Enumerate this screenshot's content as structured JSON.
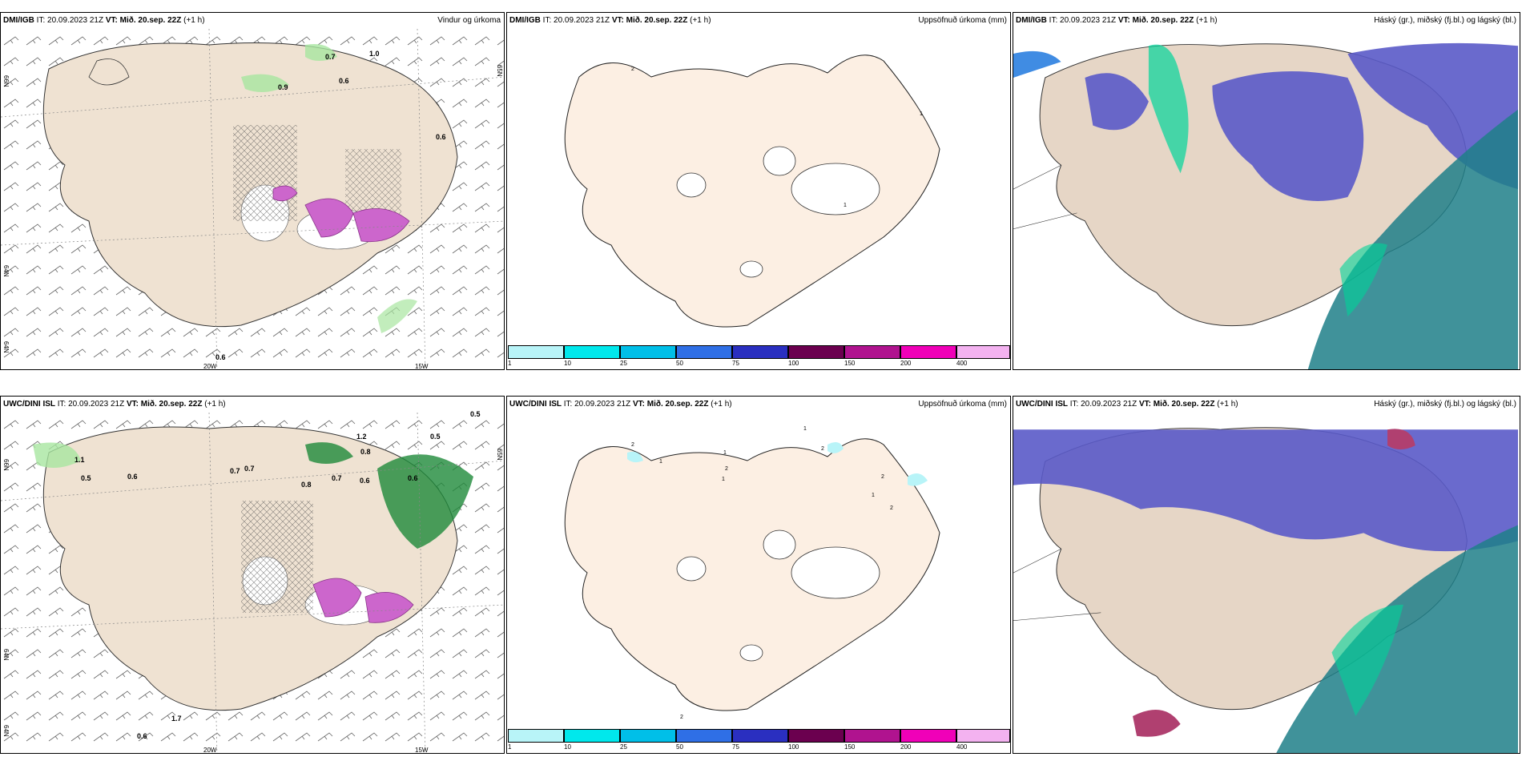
{
  "panels": [
    {
      "model": "DMI/IGB",
      "init_label": "IT:",
      "init": "20.09.2023 21Z",
      "valid_label": "VT:",
      "valid": "Mið. 20.sep. 22Z",
      "lead": "(+1 h)",
      "title": "Vindur og úrkoma"
    },
    {
      "model": "DMI/IGB",
      "init_label": "IT:",
      "init": "20.09.2023 21Z",
      "valid_label": "VT:",
      "valid": "Mið. 20.sep. 22Z",
      "lead": "(+1 h)",
      "title": "Uppsöfnuð úrkoma (mm)"
    },
    {
      "model": "DMI/IGB",
      "init_label": "IT:",
      "init": "20.09.2023 21Z",
      "valid_label": "VT:",
      "valid": "Mið. 20.sep. 22Z",
      "lead": "(+1 h)",
      "title": "Háský (gr.), miðský (fj.bl.) og lágský (bl.)"
    },
    {
      "model": "UWC/DINI ISL",
      "init_label": "IT:",
      "init": "20.09.2023 21Z",
      "valid_label": "VT:",
      "valid": "Mið. 20.sep. 22Z",
      "lead": "(+1 h)",
      "title": ""
    },
    {
      "model": "UWC/DINI ISL",
      "init_label": "IT:",
      "init": "20.09.2023 21Z",
      "valid_label": "VT:",
      "valid": "Mið. 20.sep. 22Z",
      "lead": "(+1 h)",
      "title": "Uppsöfnuð úrkoma (mm)"
    },
    {
      "model": "UWC/DINI ISL",
      "init_label": "IT:",
      "init": "20.09.2023 21Z",
      "valid_label": "VT:",
      "valid": "Mið. 20.sep. 22Z",
      "lead": "(+1 h)",
      "title": "Háský (gr.), miðský (fj.bl.) og lágský (bl.)"
    }
  ],
  "axes": {
    "lon_left": "20W",
    "lon_right": "15W",
    "lat_66": "66N",
    "lat_64": "64N",
    "lat_64b": "64N",
    "lat_65_side": "65N"
  },
  "colorbar": {
    "colors": [
      "#b8f4f8",
      "#00e8ec",
      "#00bfe8",
      "#2f6fe6",
      "#2a2fc0",
      "#6b004f",
      "#b0138f",
      "#f000b8",
      "#f3b2f0"
    ],
    "ticks": [
      "1",
      "10",
      "25",
      "50",
      "75",
      "100",
      "150",
      "200",
      "400"
    ]
  },
  "wind_values_top": [
    "0.7",
    "1.0",
    "0.9",
    "0.6",
    "0.6",
    "0.6"
  ],
  "wind_values_bottom": [
    "1.1",
    "0.5",
    "0.6",
    "0.7",
    "0.7",
    "1.2",
    "0.5",
    "0.8",
    "0.6",
    "1.7",
    "0.6",
    "0.5",
    "0.8",
    "0.7",
    "0.6"
  ],
  "precip_values_top": [
    "2",
    "1",
    "1"
  ],
  "precip_values_bottom": [
    "2",
    "1",
    "1",
    "1",
    "2",
    "1",
    "2",
    "1",
    "2",
    "2",
    "2"
  ],
  "colors": {
    "land": "#efe2d2",
    "land_precip": "#fcefe3",
    "cloud_high": "#00d49a",
    "cloud_mid": "#5a5ac8",
    "cloud_low": "#2b7fe0"
  }
}
